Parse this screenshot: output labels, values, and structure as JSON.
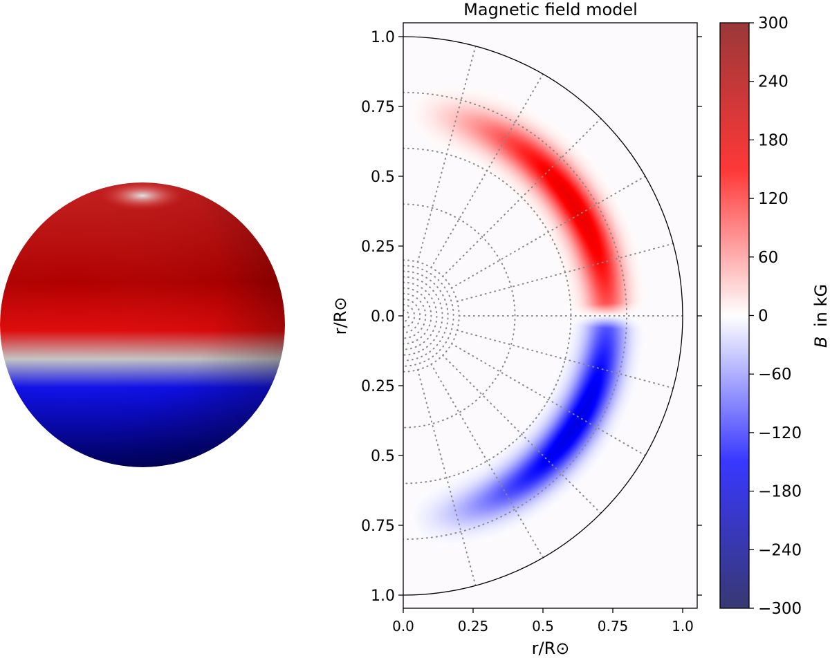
{
  "chart_data": [
    {
      "type": "heatmap",
      "title": "",
      "description_panel": "sphere",
      "colormap": "seismic",
      "values": {
        "north_hemisphere_sign": "positive",
        "south_hemisphere_sign": "negative"
      }
    },
    {
      "type": "heatmap",
      "title": "Magnetic field model",
      "xlabel": "r/R⊙",
      "ylabel": "r/R⊙",
      "xlim": [
        0.0,
        1.0
      ],
      "ylim": [
        -1.0,
        1.0
      ],
      "x_ticks": [
        "0.0",
        "0.25",
        "0.5",
        "0.75",
        "1.0"
      ],
      "y_ticks": [
        "1.0",
        "0.75",
        "0.5",
        "0.25",
        "0.0",
        "0.25",
        "0.5",
        "0.75",
        "1.0"
      ],
      "y_tick_values": [
        1.0,
        0.75,
        0.5,
        0.25,
        0.0,
        -0.25,
        -0.5,
        -0.75,
        -1.0
      ],
      "field": {
        "model": "toroidal_band",
        "center_radius": 0.73,
        "radial_width": 0.07,
        "peak_kG": 300,
        "north_sign": 1,
        "south_sign": -1
      },
      "grid_circles_r": [
        0.02,
        0.04,
        0.06,
        0.08,
        0.1,
        0.12,
        0.14,
        0.16,
        0.18,
        0.2,
        0.4,
        0.6,
        0.8
      ],
      "grid_spokes_deg": [
        15,
        30,
        45,
        60,
        75,
        90,
        105,
        120,
        135,
        150,
        165
      ],
      "grid": true,
      "colorbar": {
        "label": "in kG",
        "label_var": "B",
        "range": [
          -300,
          300
        ],
        "ticks": [
          "300",
          "240",
          "180",
          "120",
          "60",
          "0",
          "−60",
          "−120",
          "−180",
          "−240",
          "−300"
        ],
        "tick_values": [
          300,
          240,
          180,
          120,
          60,
          0,
          -60,
          -120,
          -180,
          -240,
          -300
        ],
        "colormap": "seismic"
      }
    }
  ]
}
